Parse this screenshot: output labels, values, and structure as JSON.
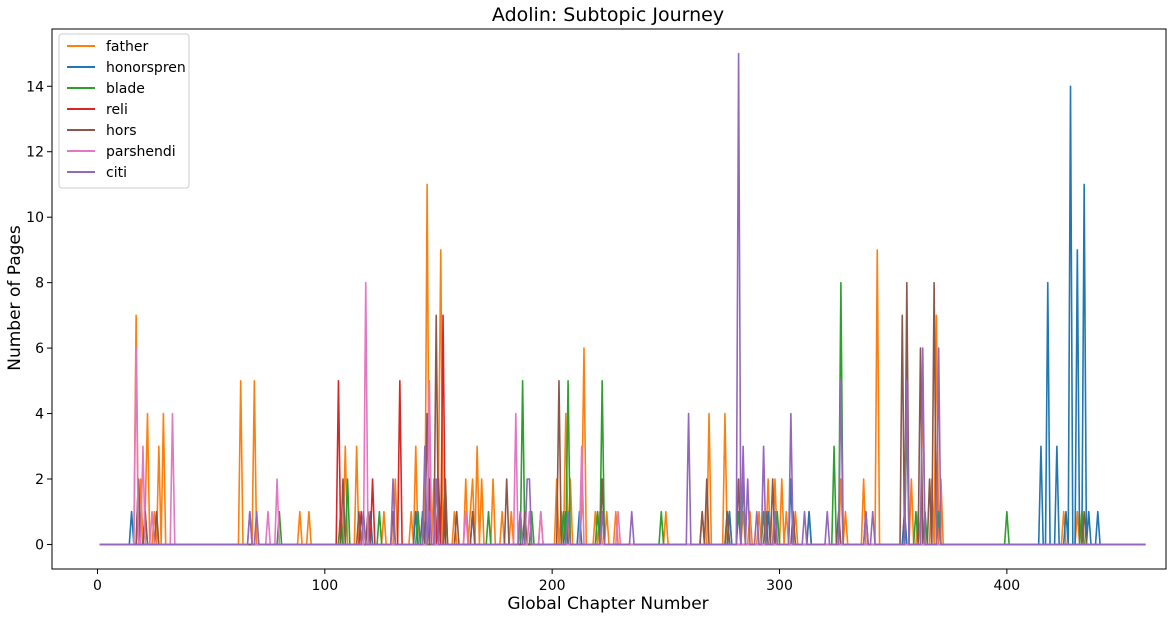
{
  "chart_data": {
    "type": "line",
    "title": "Adolin: Subtopic Journey",
    "xlabel": "Global Chapter Number",
    "ylabel": "Number of Pages",
    "xlim": [
      -20,
      470
    ],
    "ylim": [
      -0.75,
      15.75
    ],
    "xticks": [
      0,
      100,
      200,
      300,
      400
    ],
    "yticks": [
      0,
      2,
      4,
      6,
      8,
      10,
      12,
      14
    ],
    "x_range": [
      1,
      461
    ],
    "grid": false,
    "legend_position": "top-left",
    "series": [
      {
        "name": "father",
        "color": "#ff7f0e",
        "spikes": [
          [
            17,
            7
          ],
          [
            19,
            2
          ],
          [
            21,
            1
          ],
          [
            22,
            4
          ],
          [
            25,
            1
          ],
          [
            27,
            3
          ],
          [
            29,
            4
          ],
          [
            63,
            5
          ],
          [
            69,
            5
          ],
          [
            89,
            1
          ],
          [
            93,
            1
          ],
          [
            107,
            1
          ],
          [
            109,
            3
          ],
          [
            114,
            3
          ],
          [
            119,
            1
          ],
          [
            126,
            1
          ],
          [
            131,
            2
          ],
          [
            138,
            1
          ],
          [
            140,
            3
          ],
          [
            143,
            1
          ],
          [
            145,
            11
          ],
          [
            148,
            2
          ],
          [
            150,
            2
          ],
          [
            151,
            9
          ],
          [
            153,
            2
          ],
          [
            157,
            1
          ],
          [
            162,
            2
          ],
          [
            164,
            1
          ],
          [
            165,
            2
          ],
          [
            167,
            3
          ],
          [
            169,
            2
          ],
          [
            174,
            2
          ],
          [
            178,
            1
          ],
          [
            182,
            1
          ],
          [
            186,
            1
          ],
          [
            195,
            1
          ],
          [
            202,
            2
          ],
          [
            204,
            1
          ],
          [
            206,
            4
          ],
          [
            208,
            2
          ],
          [
            213,
            1
          ],
          [
            214,
            6
          ],
          [
            219,
            1
          ],
          [
            221,
            1
          ],
          [
            224,
            1
          ],
          [
            228,
            1
          ],
          [
            250,
            1
          ],
          [
            266,
            1
          ],
          [
            269,
            4
          ],
          [
            276,
            4
          ],
          [
            278,
            1
          ],
          [
            284,
            1
          ],
          [
            287,
            1
          ],
          [
            291,
            1
          ],
          [
            295,
            2
          ],
          [
            298,
            2
          ],
          [
            301,
            2
          ],
          [
            303,
            1
          ],
          [
            307,
            1
          ],
          [
            313,
            1
          ],
          [
            327,
            2
          ],
          [
            329,
            1
          ],
          [
            337,
            2
          ],
          [
            343,
            9
          ],
          [
            355,
            1
          ],
          [
            358,
            2
          ],
          [
            361,
            1
          ],
          [
            363,
            5
          ],
          [
            367,
            2
          ],
          [
            369,
            7
          ],
          [
            371,
            2
          ],
          [
            425,
            1
          ],
          [
            431,
            1
          ],
          [
            433,
            1
          ]
        ]
      },
      {
        "name": "honorspren",
        "color": "#1f77b4",
        "spikes": [
          [
            15,
            1
          ],
          [
            120,
            1
          ],
          [
            140,
            1
          ],
          [
            143,
            1
          ],
          [
            165,
            1
          ],
          [
            206,
            1
          ],
          [
            212,
            1
          ],
          [
            222,
            1
          ],
          [
            278,
            1
          ],
          [
            295,
            1
          ],
          [
            305,
            2
          ],
          [
            313,
            1
          ],
          [
            355,
            1
          ],
          [
            370,
            1
          ],
          [
            415,
            3
          ],
          [
            418,
            8
          ],
          [
            422,
            3
          ],
          [
            426,
            1
          ],
          [
            428,
            14
          ],
          [
            431,
            9
          ],
          [
            434,
            11
          ],
          [
            436,
            1
          ],
          [
            440,
            1
          ]
        ]
      },
      {
        "name": "blade",
        "color": "#2ca02c",
        "spikes": [
          [
            18,
            2
          ],
          [
            21,
            1
          ],
          [
            80,
            1
          ],
          [
            107,
            1
          ],
          [
            110,
            2
          ],
          [
            124,
            1
          ],
          [
            141,
            1
          ],
          [
            150,
            1
          ],
          [
            153,
            1
          ],
          [
            172,
            1
          ],
          [
            187,
            5
          ],
          [
            191,
            1
          ],
          [
            205,
            1
          ],
          [
            207,
            5
          ],
          [
            220,
            1
          ],
          [
            222,
            5
          ],
          [
            248,
            1
          ],
          [
            277,
            1
          ],
          [
            282,
            1
          ],
          [
            284,
            2
          ],
          [
            293,
            1
          ],
          [
            299,
            1
          ],
          [
            324,
            3
          ],
          [
            327,
            8
          ],
          [
            356,
            4
          ],
          [
            360,
            1
          ],
          [
            364,
            1
          ],
          [
            370,
            1
          ],
          [
            400,
            1
          ],
          [
            433,
            1
          ]
        ]
      },
      {
        "name": "reli",
        "color": "#d62728",
        "spikes": [
          [
            106,
            5
          ],
          [
            116,
            1
          ],
          [
            121,
            2
          ],
          [
            133,
            5
          ],
          [
            146,
            2
          ],
          [
            150,
            2
          ],
          [
            152,
            7
          ]
        ]
      },
      {
        "name": "hors",
        "color": "#8c564b",
        "spikes": [
          [
            18,
            2
          ],
          [
            21,
            1
          ],
          [
            26,
            1
          ],
          [
            108,
            2
          ],
          [
            115,
            1
          ],
          [
            119,
            1
          ],
          [
            130,
            1
          ],
          [
            145,
            4
          ],
          [
            149,
            7
          ],
          [
            153,
            2
          ],
          [
            158,
            1
          ],
          [
            165,
            1
          ],
          [
            180,
            2
          ],
          [
            188,
            1
          ],
          [
            203,
            5
          ],
          [
            222,
            2
          ],
          [
            266,
            1
          ],
          [
            268,
            2
          ],
          [
            277,
            1
          ],
          [
            282,
            2
          ],
          [
            294,
            1
          ],
          [
            297,
            2
          ],
          [
            306,
            1
          ],
          [
            326,
            1
          ],
          [
            338,
            1
          ],
          [
            354,
            7
          ],
          [
            356,
            8
          ],
          [
            362,
            6
          ],
          [
            366,
            2
          ],
          [
            368,
            8
          ],
          [
            434,
            1
          ]
        ]
      },
      {
        "name": "parshendi",
        "color": "#e377c2",
        "spikes": [
          [
            17,
            6
          ],
          [
            20,
            3
          ],
          [
            24,
            1
          ],
          [
            33,
            4
          ],
          [
            67,
            1
          ],
          [
            75,
            1
          ],
          [
            79,
            2
          ],
          [
            118,
            8
          ],
          [
            146,
            5
          ],
          [
            162,
            1
          ],
          [
            184,
            4
          ],
          [
            186,
            1
          ],
          [
            190,
            1
          ],
          [
            195,
            1
          ],
          [
            213,
            3
          ],
          [
            229,
            1
          ]
        ]
      },
      {
        "name": "citi",
        "color": "#9467bd",
        "spikes": [
          [
            67,
            1
          ],
          [
            70,
            1
          ],
          [
            117,
            1
          ],
          [
            130,
            2
          ],
          [
            144,
            3
          ],
          [
            146,
            1
          ],
          [
            149,
            2
          ],
          [
            186,
            1
          ],
          [
            189,
            2
          ],
          [
            190,
            2
          ],
          [
            207,
            1
          ],
          [
            222,
            1
          ],
          [
            235,
            1
          ],
          [
            260,
            4
          ],
          [
            282,
            15
          ],
          [
            284,
            3
          ],
          [
            286,
            2
          ],
          [
            290,
            1
          ],
          [
            293,
            3
          ],
          [
            298,
            1
          ],
          [
            305,
            4
          ],
          [
            311,
            1
          ],
          [
            321,
            1
          ],
          [
            327,
            5
          ],
          [
            338,
            1
          ],
          [
            341,
            1
          ],
          [
            356,
            5
          ],
          [
            363,
            6
          ],
          [
            370,
            6
          ]
        ]
      }
    ]
  }
}
